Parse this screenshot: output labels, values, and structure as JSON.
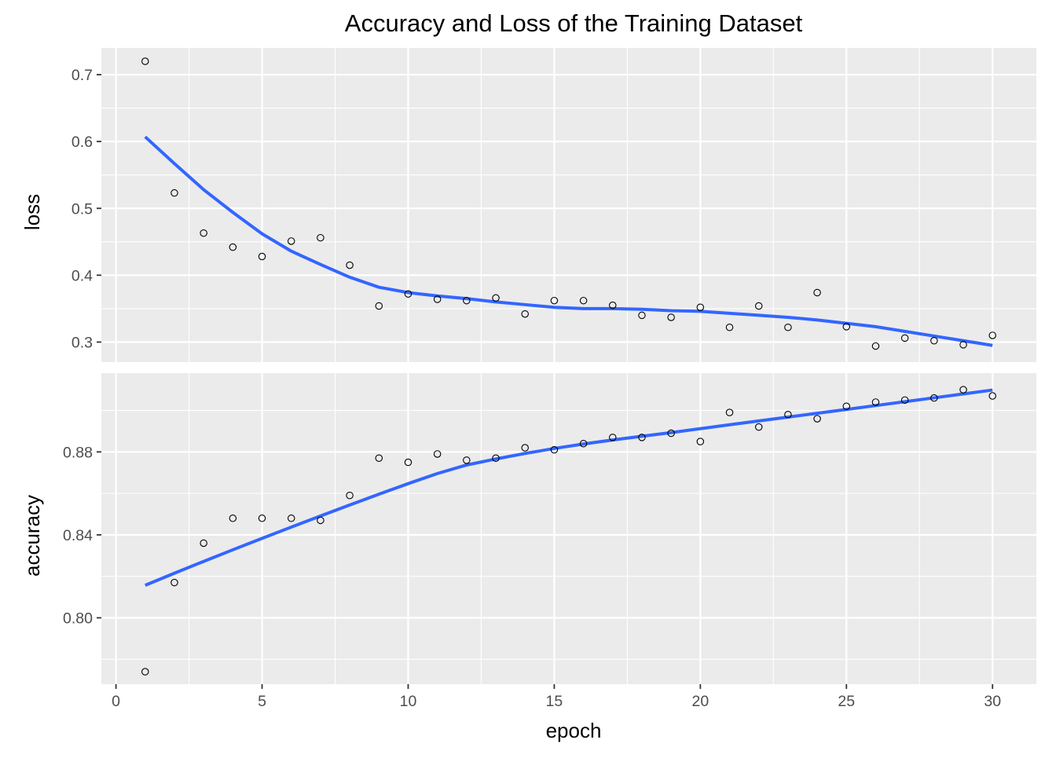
{
  "chart_data": {
    "type": "scatter",
    "title": "Accuracy and Loss of the Training Dataset",
    "xlabel": "epoch",
    "x_ticks": [
      0,
      5,
      10,
      15,
      20,
      25,
      30
    ],
    "xlim": [
      -0.5,
      31.5
    ],
    "background": "#ebebeb",
    "grid": true,
    "legend": "none",
    "colors": {
      "smooth_line": "#3366ff",
      "points": "#000000",
      "panel": "#ebebeb",
      "grid": "#ffffff"
    },
    "panels": [
      {
        "name": "loss",
        "ylabel": "loss",
        "ylim": [
          0.27,
          0.74
        ],
        "y_ticks": [
          0.3,
          0.4,
          0.5,
          0.6,
          0.7
        ],
        "y_tick_labels": [
          "0.3",
          "0.4",
          "0.5",
          "0.6",
          "0.7"
        ],
        "x": [
          1,
          2,
          3,
          4,
          5,
          6,
          7,
          8,
          9,
          10,
          11,
          12,
          13,
          14,
          15,
          16,
          17,
          18,
          19,
          20,
          21,
          22,
          23,
          24,
          25,
          26,
          27,
          28,
          29,
          30
        ],
        "points": [
          0.72,
          0.523,
          0.463,
          0.442,
          0.428,
          0.451,
          0.456,
          0.415,
          0.354,
          0.372,
          0.364,
          0.362,
          0.366,
          0.342,
          0.362,
          0.362,
          0.355,
          0.34,
          0.337,
          0.352,
          0.322,
          0.354,
          0.322,
          0.374,
          0.323,
          0.294,
          0.306,
          0.302,
          0.296,
          0.31
        ],
        "smooth": [
          0.607,
          0.567,
          0.528,
          0.494,
          0.462,
          0.436,
          0.416,
          0.397,
          0.382,
          0.374,
          0.369,
          0.365,
          0.36,
          0.356,
          0.352,
          0.35,
          0.35,
          0.349,
          0.347,
          0.346,
          0.343,
          0.34,
          0.337,
          0.333,
          0.328,
          0.323,
          0.316,
          0.309,
          0.302,
          0.295
        ]
      },
      {
        "name": "accuracy",
        "ylabel": "accuracy",
        "ylim": [
          0.768,
          0.918
        ],
        "y_ticks": [
          0.8,
          0.84,
          0.88
        ],
        "y_tick_labels": [
          "0.80",
          "0.84",
          "0.88"
        ],
        "x": [
          1,
          2,
          3,
          4,
          5,
          6,
          7,
          8,
          9,
          10,
          11,
          12,
          13,
          14,
          15,
          16,
          17,
          18,
          19,
          20,
          21,
          22,
          23,
          24,
          25,
          26,
          27,
          28,
          29,
          30
        ],
        "points": [
          0.774,
          0.817,
          0.836,
          0.848,
          0.848,
          0.848,
          0.847,
          0.859,
          0.877,
          0.875,
          0.879,
          0.876,
          0.877,
          0.882,
          0.881,
          0.884,
          0.887,
          0.887,
          0.889,
          0.885,
          0.899,
          0.892,
          0.898,
          0.896,
          0.902,
          0.904,
          0.905,
          0.906,
          0.91,
          0.907
        ]
      }
    ]
  }
}
